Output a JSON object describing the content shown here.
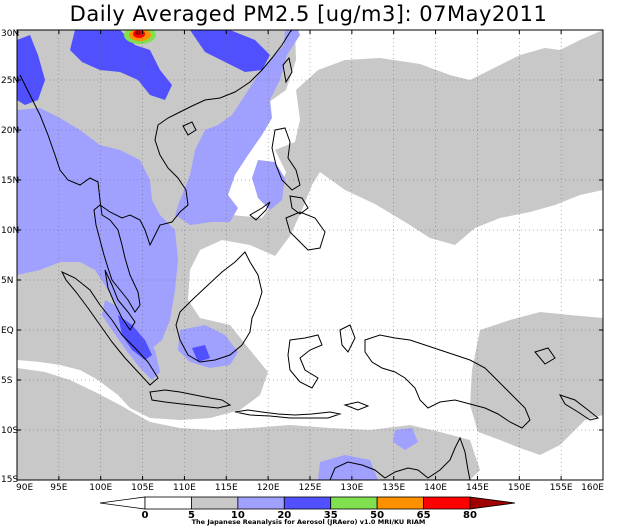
{
  "title": "Daily Averaged PM2.5 [ug/m3]: 07May2011",
  "map": {
    "extent": {
      "lon_min": 90,
      "lon_max": 160,
      "lat_min": -15,
      "lat_max": 30
    },
    "lon_ticks": [
      {
        "value": 90,
        "label": "90E"
      },
      {
        "value": 95,
        "label": "95E"
      },
      {
        "value": 100,
        "label": "100E"
      },
      {
        "value": 105,
        "label": "105E"
      },
      {
        "value": 110,
        "label": "110E"
      },
      {
        "value": 115,
        "label": "115E"
      },
      {
        "value": 120,
        "label": "120E"
      },
      {
        "value": 125,
        "label": "125E"
      },
      {
        "value": 130,
        "label": "130E"
      },
      {
        "value": 135,
        "label": "135E"
      },
      {
        "value": 140,
        "label": "140E"
      },
      {
        "value": 145,
        "label": "145E"
      },
      {
        "value": 150,
        "label": "150E"
      },
      {
        "value": 155,
        "label": "155E"
      },
      {
        "value": 160,
        "label": "160E"
      }
    ],
    "lat_ticks": [
      {
        "value": 30,
        "label": "30N"
      },
      {
        "value": 25,
        "label": "25N"
      },
      {
        "value": 20,
        "label": "20N"
      },
      {
        "value": 15,
        "label": "15N"
      },
      {
        "value": 10,
        "label": "10N"
      },
      {
        "value": 5,
        "label": "5N"
      },
      {
        "value": 0,
        "label": "EQ"
      },
      {
        "value": -5,
        "label": "5S"
      },
      {
        "value": -10,
        "label": "10S"
      },
      {
        "value": -15,
        "label": "15S"
      }
    ],
    "grid": "dotted"
  },
  "colorbar": {
    "levels": [
      0,
      5,
      10,
      20,
      35,
      50,
      65,
      80
    ],
    "labels": [
      "0",
      "5",
      "10",
      "20",
      "35",
      "50",
      "65",
      "80"
    ],
    "colors": [
      "#ffffff",
      "#c8c8c8",
      "#a0a0ff",
      "#5050ff",
      "#80e050",
      "#ff9000",
      "#ff0000"
    ],
    "under_color": "#ffffff",
    "over_color": "#a00000"
  },
  "credit": "The Japanese Reanalysis for Aerosol (JRAero) v1.0 MRI/KU RIAM"
}
